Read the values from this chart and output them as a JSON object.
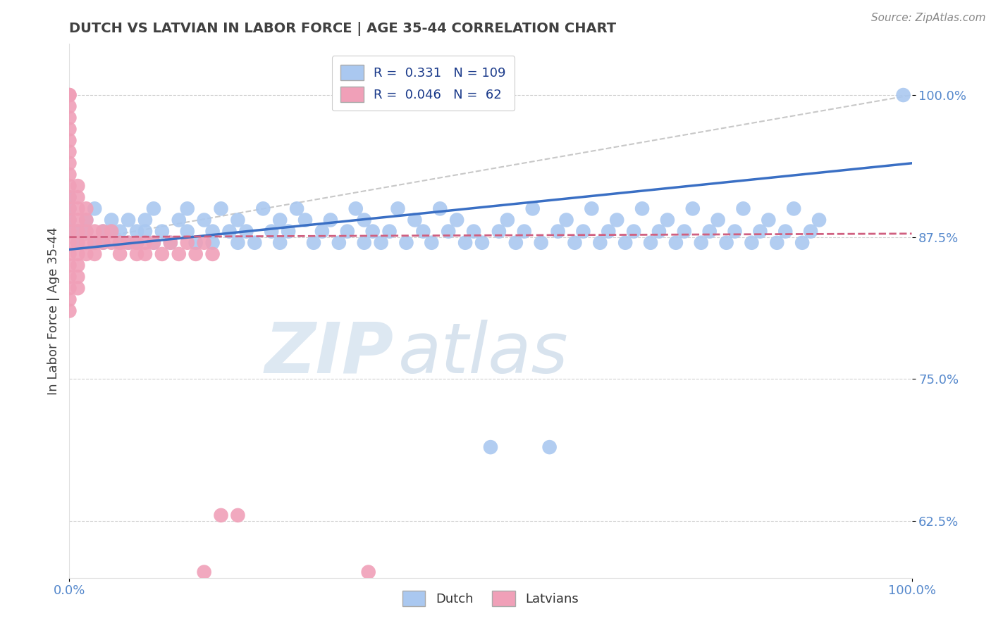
{
  "title": "DUTCH VS LATVIAN IN LABOR FORCE | AGE 35-44 CORRELATION CHART",
  "source_text": "Source: ZipAtlas.com",
  "ylabel": "In Labor Force | Age 35-44",
  "xlim": [
    0.0,
    1.0
  ],
  "ylim": [
    0.575,
    1.045
  ],
  "yticks": [
    0.625,
    0.75,
    0.875,
    1.0
  ],
  "ytick_labels": [
    "62.5%",
    "75.0%",
    "87.5%",
    "100.0%"
  ],
  "xticks": [
    0.0,
    1.0
  ],
  "xtick_labels": [
    "0.0%",
    "100.0%"
  ],
  "watermark_zip": "ZIP",
  "watermark_atlas": "atlas",
  "dutch_R": 0.331,
  "dutch_N": 109,
  "latvian_R": 0.046,
  "latvian_N": 62,
  "dutch_color": "#aac8f0",
  "latvian_color": "#f0a0b8",
  "dutch_line_color": "#3a6fc4",
  "latvian_line_color": "#d06080",
  "gray_dash_color": "#c8c8c8",
  "title_color": "#404040",
  "axis_tick_color": "#5588cc",
  "legend_text_color": "#1a3a8a",
  "source_color": "#888888",
  "ylabel_color": "#404040",
  "dutch_x": [
    0.0,
    0.0,
    0.0,
    0.0,
    0.01,
    0.01,
    0.02,
    0.02,
    0.03,
    0.03,
    0.04,
    0.04,
    0.05,
    0.05,
    0.06,
    0.06,
    0.07,
    0.07,
    0.08,
    0.08,
    0.09,
    0.09,
    0.1,
    0.1,
    0.11,
    0.12,
    0.13,
    0.14,
    0.14,
    0.15,
    0.16,
    0.17,
    0.17,
    0.18,
    0.19,
    0.2,
    0.2,
    0.21,
    0.22,
    0.23,
    0.24,
    0.25,
    0.25,
    0.26,
    0.27,
    0.28,
    0.29,
    0.3,
    0.31,
    0.32,
    0.33,
    0.34,
    0.35,
    0.35,
    0.36,
    0.37,
    0.38,
    0.39,
    0.4,
    0.41,
    0.42,
    0.43,
    0.44,
    0.45,
    0.46,
    0.47,
    0.48,
    0.49,
    0.5,
    0.51,
    0.52,
    0.53,
    0.54,
    0.55,
    0.56,
    0.57,
    0.58,
    0.59,
    0.6,
    0.61,
    0.62,
    0.63,
    0.64,
    0.65,
    0.66,
    0.67,
    0.68,
    0.69,
    0.7,
    0.71,
    0.72,
    0.73,
    0.74,
    0.75,
    0.76,
    0.77,
    0.78,
    0.79,
    0.8,
    0.81,
    0.82,
    0.83,
    0.84,
    0.85,
    0.86,
    0.87,
    0.88,
    0.89,
    0.99
  ],
  "dutch_y": [
    0.91,
    0.9,
    0.89,
    0.88,
    0.88,
    0.87,
    0.89,
    0.88,
    0.9,
    0.87,
    0.88,
    0.87,
    0.89,
    0.88,
    0.87,
    0.88,
    0.89,
    0.87,
    0.88,
    0.87,
    0.89,
    0.88,
    0.87,
    0.9,
    0.88,
    0.87,
    0.89,
    0.9,
    0.88,
    0.87,
    0.89,
    0.88,
    0.87,
    0.9,
    0.88,
    0.89,
    0.87,
    0.88,
    0.87,
    0.9,
    0.88,
    0.89,
    0.87,
    0.88,
    0.9,
    0.89,
    0.87,
    0.88,
    0.89,
    0.87,
    0.88,
    0.9,
    0.87,
    0.89,
    0.88,
    0.87,
    0.88,
    0.9,
    0.87,
    0.89,
    0.88,
    0.87,
    0.9,
    0.88,
    0.89,
    0.87,
    0.88,
    0.87,
    0.69,
    0.88,
    0.89,
    0.87,
    0.88,
    0.9,
    0.87,
    0.69,
    0.88,
    0.89,
    0.87,
    0.88,
    0.9,
    0.87,
    0.88,
    0.89,
    0.87,
    0.88,
    0.9,
    0.87,
    0.88,
    0.89,
    0.87,
    0.88,
    0.9,
    0.87,
    0.88,
    0.89,
    0.87,
    0.88,
    0.9,
    0.87,
    0.88,
    0.89,
    0.87,
    0.88,
    0.9,
    0.87,
    0.88,
    0.89,
    1.0
  ],
  "latvian_x": [
    0.0,
    0.0,
    0.0,
    0.0,
    0.0,
    0.0,
    0.0,
    0.0,
    0.0,
    0.0,
    0.0,
    0.0,
    0.0,
    0.0,
    0.0,
    0.0,
    0.0,
    0.0,
    0.0,
    0.0,
    0.0,
    0.01,
    0.01,
    0.01,
    0.01,
    0.01,
    0.01,
    0.01,
    0.01,
    0.01,
    0.01,
    0.02,
    0.02,
    0.02,
    0.02,
    0.02,
    0.03,
    0.03,
    0.03,
    0.04,
    0.04,
    0.05,
    0.05,
    0.06,
    0.06,
    0.07,
    0.08,
    0.08,
    0.09,
    0.09,
    0.1,
    0.11,
    0.12,
    0.13,
    0.14,
    0.15,
    0.16,
    0.17,
    0.18,
    0.2,
    0.355,
    0.16
  ],
  "latvian_y": [
    1.0,
    1.0,
    0.99,
    0.98,
    0.97,
    0.96,
    0.95,
    0.94,
    0.93,
    0.92,
    0.91,
    0.9,
    0.89,
    0.88,
    0.87,
    0.86,
    0.85,
    0.84,
    0.83,
    0.82,
    0.81,
    0.92,
    0.91,
    0.9,
    0.89,
    0.88,
    0.87,
    0.86,
    0.85,
    0.84,
    0.83,
    0.9,
    0.89,
    0.88,
    0.87,
    0.86,
    0.88,
    0.87,
    0.86,
    0.88,
    0.87,
    0.88,
    0.87,
    0.87,
    0.86,
    0.87,
    0.87,
    0.86,
    0.87,
    0.86,
    0.87,
    0.86,
    0.87,
    0.86,
    0.87,
    0.86,
    0.87,
    0.86,
    0.63,
    0.63,
    0.58,
    0.58
  ],
  "dutch_line_start_y": 0.864,
  "dutch_line_end_y": 0.94,
  "latvian_line_start_y": 0.875,
  "latvian_line_end_y": 0.878,
  "gray_line_start_y": 0.87,
  "gray_line_end_y": 1.0
}
